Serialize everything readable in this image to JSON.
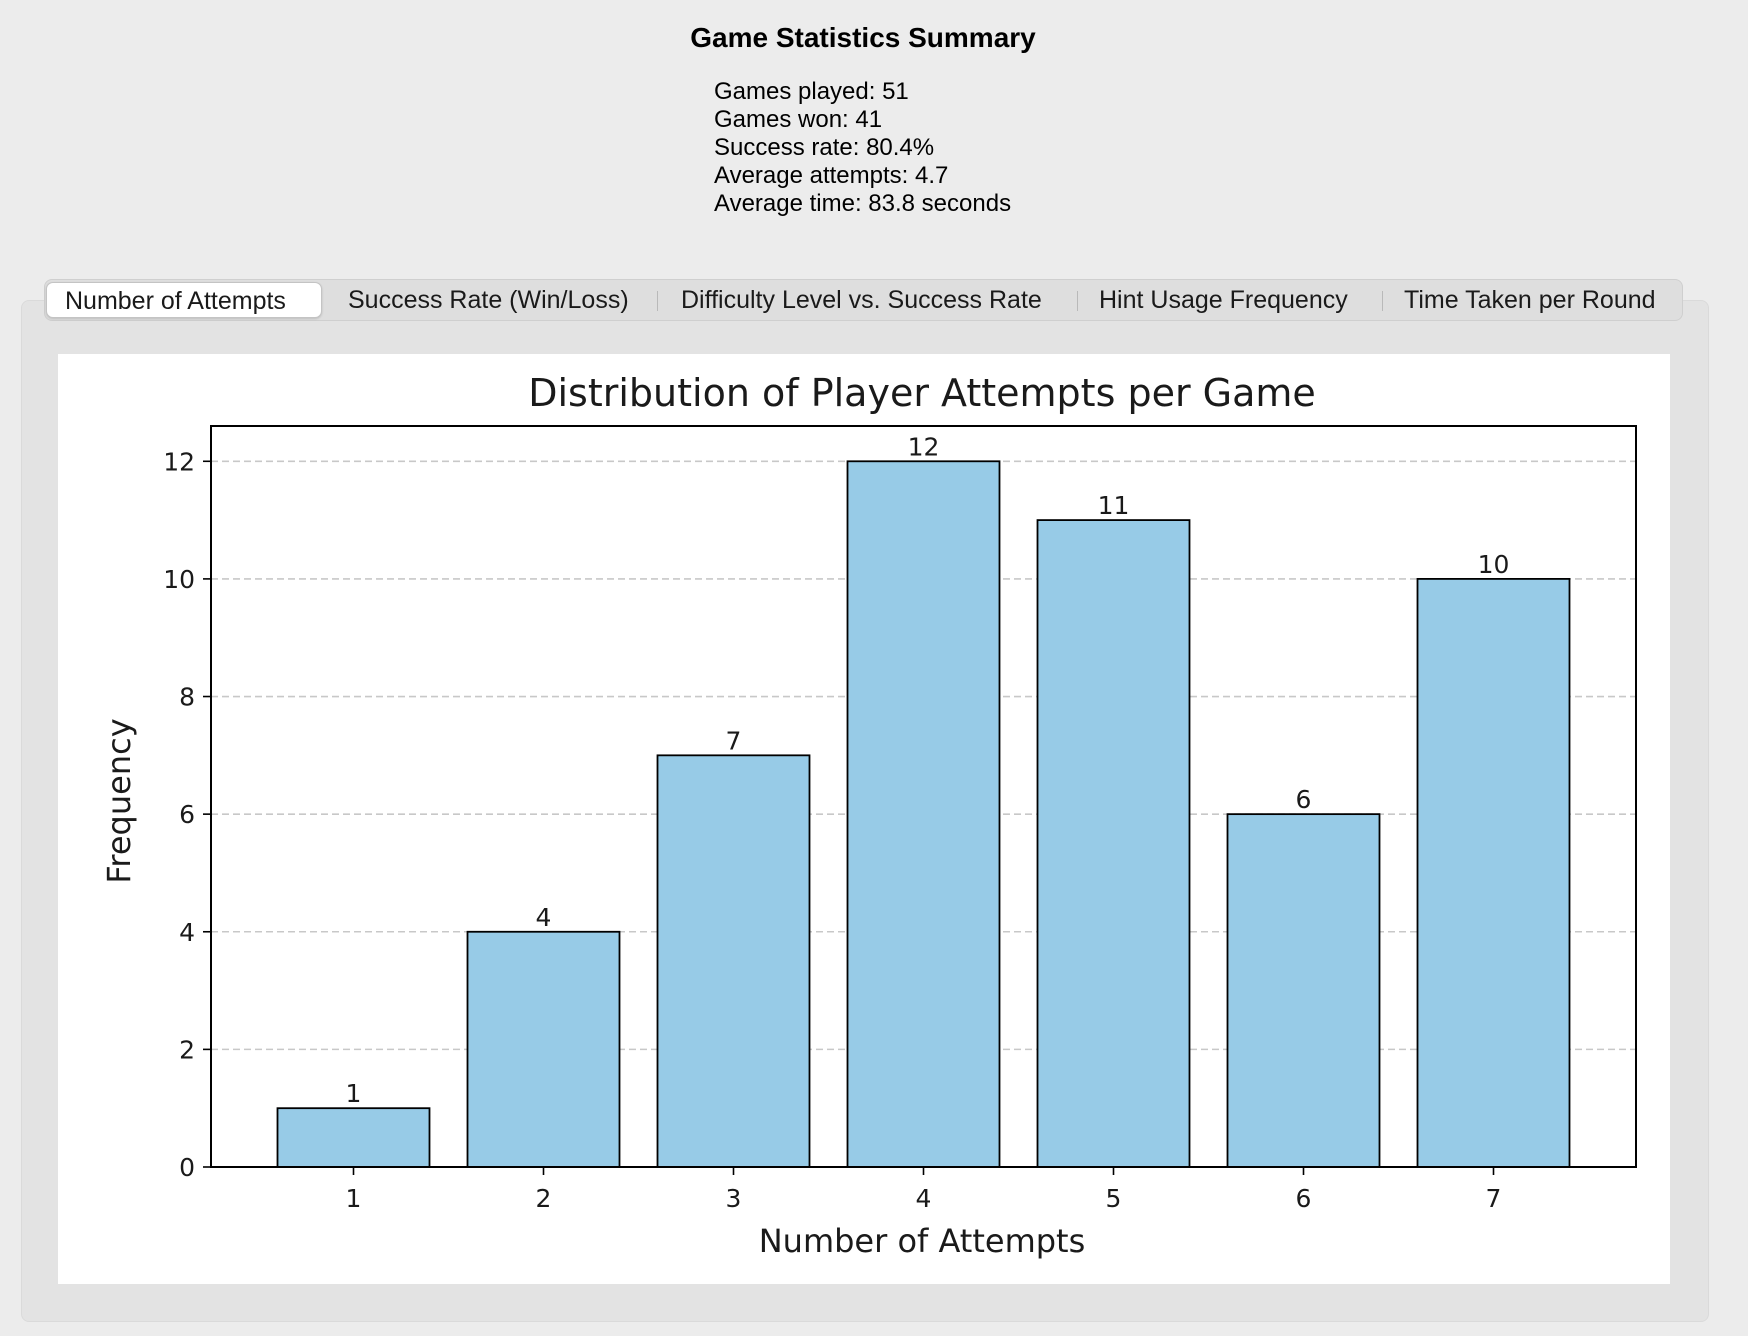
{
  "summary": {
    "title": "Game Statistics Summary",
    "lines": [
      "Games played: 51",
      "Games won: 41",
      "Success rate: 80.4%",
      "Average attempts: 4.7",
      "Average time: 83.8 seconds"
    ]
  },
  "tabs": [
    {
      "label": "Number of Attempts",
      "active": true
    },
    {
      "label": "Success Rate (Win/Loss)",
      "active": false
    },
    {
      "label": "Difficulty Level vs. Success Rate",
      "active": false
    },
    {
      "label": "Hint Usage Frequency",
      "active": false
    },
    {
      "label": "Time Taken per Round",
      "active": false
    }
  ],
  "chart_data": {
    "type": "bar",
    "title": "Distribution of Player Attempts per Game",
    "xlabel": "Number of Attempts",
    "ylabel": "Frequency",
    "categories": [
      "1",
      "2",
      "3",
      "4",
      "5",
      "6",
      "7"
    ],
    "values": [
      1,
      4,
      7,
      12,
      11,
      6,
      10
    ],
    "ylim": [
      0,
      12.6
    ],
    "yticks": [
      0,
      2,
      4,
      6,
      8,
      10,
      12
    ],
    "grid": "y-dashed",
    "bar_color": "#97cbe7",
    "edge_color": "#000000",
    "data_labels": true
  }
}
